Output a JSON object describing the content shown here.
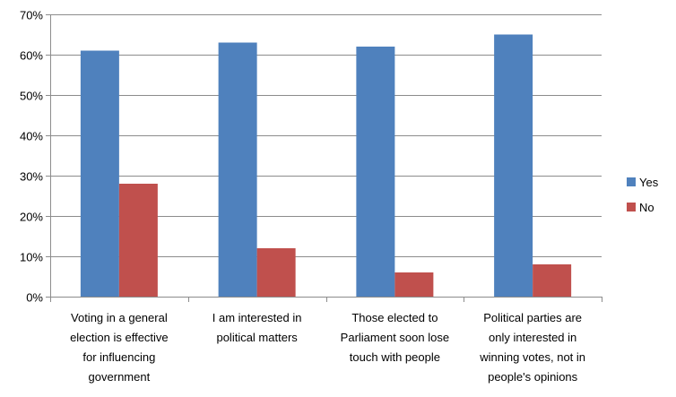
{
  "chart_data": {
    "type": "bar",
    "categories": [
      [
        "Voting in a general",
        "election is effective",
        "for influencing",
        "government"
      ],
      [
        "I am interested in",
        "political matters"
      ],
      [
        "Those elected to",
        "Parliament soon lose",
        "touch with people"
      ],
      [
        "Political parties are",
        "only interested in",
        "winning votes, not in",
        "people's opinions"
      ]
    ],
    "series": [
      {
        "name": "Yes",
        "color": "#4F81BD",
        "values": [
          61,
          63,
          62,
          65
        ]
      },
      {
        "name": "No",
        "color": "#C0504D",
        "values": [
          28,
          12,
          6,
          8
        ]
      }
    ],
    "ylim": [
      0,
      70
    ],
    "yticks": [
      0,
      10,
      20,
      30,
      40,
      50,
      60,
      70
    ],
    "ytick_labels": [
      "0%",
      "10%",
      "20%",
      "30%",
      "40%",
      "50%",
      "60%",
      "70%"
    ],
    "grid": true,
    "legend_position": "right",
    "title": "",
    "xlabel": "",
    "ylabel": ""
  }
}
